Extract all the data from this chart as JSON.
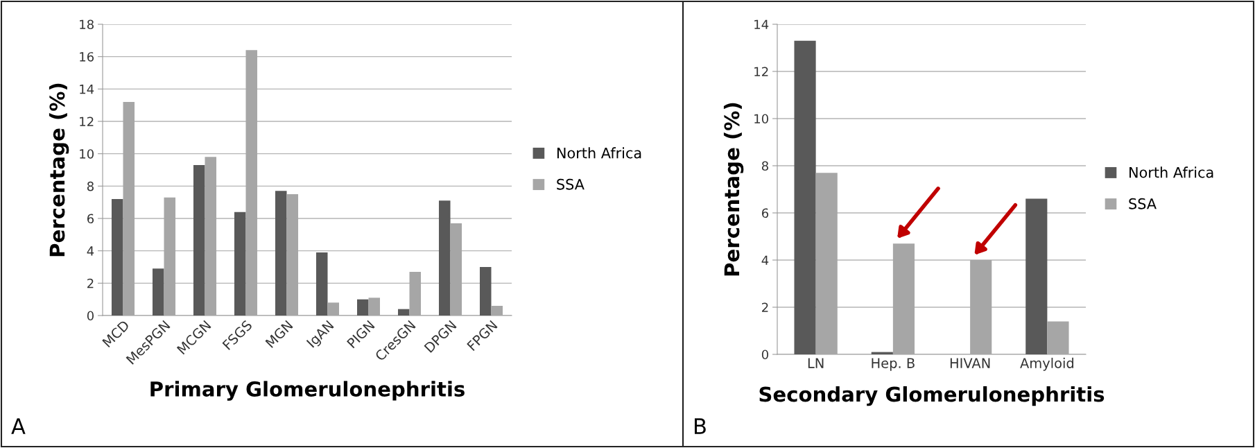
{
  "chart_data": [
    {
      "type": "bar",
      "xlabel": "Primary Glomerulonephritis",
      "ylabel": "Percentage (%)",
      "annotations": [
        "A"
      ],
      "categories": [
        "MCD",
        "MesPGN",
        "MCGN",
        "FSGS",
        "MGN",
        "IgAN",
        "PIGN",
        "CresGN",
        "DPGN",
        "FPGN"
      ],
      "series": [
        {
          "name": "North Africa",
          "color": "#595959",
          "values": [
            7.2,
            2.9,
            9.3,
            6.4,
            7.7,
            3.9,
            1.0,
            0.4,
            7.1,
            3.0
          ]
        },
        {
          "name": "SSA",
          "color": "#a6a6a6",
          "values": [
            13.2,
            7.3,
            9.8,
            16.4,
            7.5,
            0.8,
            1.1,
            2.7,
            5.7,
            0.6
          ]
        }
      ],
      "ylim": [
        0,
        18
      ],
      "yticks": [
        0,
        2,
        4,
        6,
        8,
        10,
        12,
        14,
        16,
        18
      ],
      "grid": "y",
      "legend": "right"
    },
    {
      "type": "bar",
      "xlabel": "Secondary Glomerulonephritis",
      "ylabel": "Percentage (%)",
      "annotations": [
        "B"
      ],
      "categories": [
        "LN",
        "Hep. B",
        "HIVAN",
        "Amyloid"
      ],
      "series": [
        {
          "name": "North Africa",
          "color": "#595959",
          "values": [
            13.3,
            0.1,
            0,
            6.6
          ]
        },
        {
          "name": "SSA",
          "color": "#a6a6a6",
          "values": [
            7.7,
            4.7,
            4.0,
            1.4
          ]
        }
      ],
      "ylim": [
        0,
        14
      ],
      "yticks": [
        0,
        2,
        4,
        6,
        8,
        10,
        12,
        14
      ],
      "grid": "y",
      "legend": "right"
    }
  ]
}
